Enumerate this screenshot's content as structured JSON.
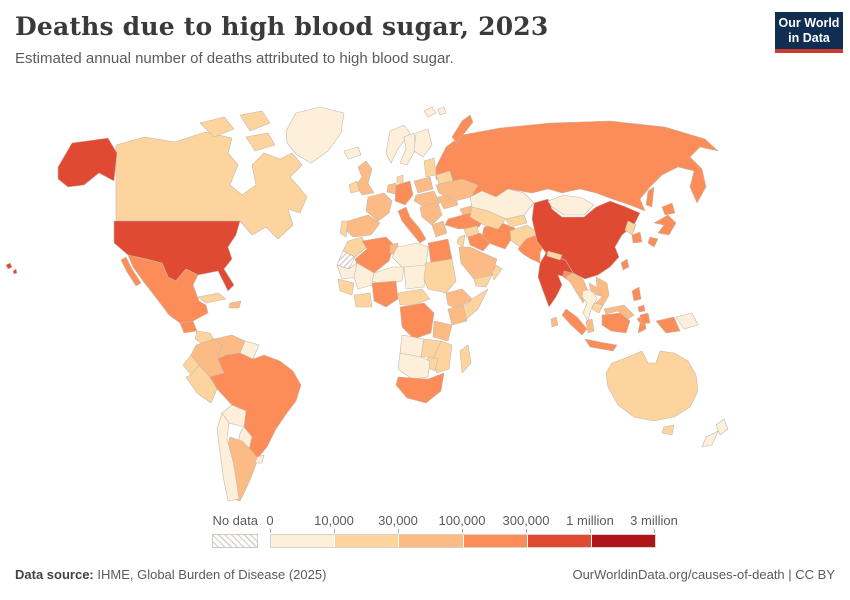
{
  "header": {
    "title": "Deaths due to high blood sugar, 2023",
    "subtitle": "Estimated annual number of deaths attributed to high blood sugar."
  },
  "logo": {
    "line1": "Our World",
    "line2": "in Data"
  },
  "legend": {
    "no_data_label": "No data",
    "ticks": [
      "0",
      "10,000",
      "30,000",
      "100,000",
      "300,000",
      "1 million",
      "3 million"
    ],
    "bin_colors": [
      "#FDEFD9",
      "#FDD49E",
      "#FCBB84",
      "#FC8D59",
      "#E04A32",
      "#AE1418"
    ]
  },
  "footer": {
    "source_label": "Data source:",
    "source_rest": " IHME, Global Burden of Disease (2025)",
    "credit": "OurWorldinData.org/causes-of-death | CC BY"
  },
  "chart_data": {
    "type": "choropleth",
    "title": "Deaths due to high blood sugar, 2023",
    "subtitle": "Estimated annual number of deaths attributed to high blood sugar.",
    "unit": "deaths",
    "legend_ticks": [
      "0",
      "10,000",
      "30,000",
      "100,000",
      "300,000",
      "1 million",
      "3 million"
    ],
    "bin_ranges": [
      "0-10,000",
      "10,000-30,000",
      "30,000-100,000",
      "100,000-300,000",
      "300,000-1 million",
      "1 million-3 million"
    ],
    "no_data_label": "No data",
    "country_bins": {
      "united-states": 4,
      "canada": 1,
      "greenland": 0,
      "mexico": 3,
      "cuba": 1,
      "hispaniola": 2,
      "guatemala": 3,
      "honduras-nicaragua": 1,
      "costa-rica-panama": 1,
      "colombia": 2,
      "venezuela": 2,
      "guyanas": 0,
      "ecuador": 1,
      "peru": 1,
      "brazil": 3,
      "bolivia": 0,
      "paraguay": 0,
      "chile": 0,
      "argentina": 2,
      "uruguay": 0,
      "iceland": 0,
      "norway": 0,
      "sweden": 0,
      "finland": 0,
      "denmark": 1,
      "united-kingdom": 2,
      "ireland": 1,
      "baltics": 1,
      "belarus": 1,
      "poland": 2,
      "germany": 3,
      "benelux": 2,
      "france": 2,
      "spain": 2,
      "portugal": 1,
      "italy": 3,
      "czech-hungary": 2,
      "balkans": 2,
      "greece": 2,
      "romania": 2,
      "ukraine": 2,
      "russia": 3,
      "kazakhstan": 0,
      "uzbekistan-turkmenistan": 1,
      "kyrgyzstan-tajikistan": 1,
      "caucasus": 2,
      "turkey": 3,
      "syria": 1,
      "iraq": 3,
      "israel-jordan": 1,
      "saudi-arabia": 2,
      "yemen": 1,
      "oman": 1,
      "iran": 3,
      "afghanistan": 1,
      "pakistan": 3,
      "morocco": 1,
      "western-sahara": null,
      "algeria": 3,
      "tunisia": 2,
      "libya": 0,
      "egypt": 3,
      "mauritania": 0,
      "mali": 0,
      "niger": 0,
      "chad": 0,
      "sudan": 1,
      "senegal-guinea": 1,
      "ivory-coast-ghana": 1,
      "nigeria": 3,
      "cameroon-car": 1,
      "ethiopia": 2,
      "somalia": 1,
      "kenya": 2,
      "drc": 3,
      "tanzania": 2,
      "angola": 0,
      "zambia": 1,
      "zimbabwe": 1,
      "mozambique": 1,
      "namibia-botswana": 0,
      "south-africa": 3,
      "madagascar": 1,
      "india": 4,
      "nepal": 1,
      "bangladesh": 3,
      "sri-lanka": 2,
      "china": 4,
      "mongolia": 0,
      "north-korea": 1,
      "south-korea": 3,
      "japan": 3,
      "taiwan": 3,
      "myanmar": 2,
      "thailand": 0,
      "laos": 2,
      "vietnam": 2,
      "cambodia": 1,
      "malaysia": 2,
      "indonesia": 3,
      "philippines": 3,
      "papua-new-guinea": 0,
      "australia": 1,
      "new-zealand": 0
    }
  }
}
